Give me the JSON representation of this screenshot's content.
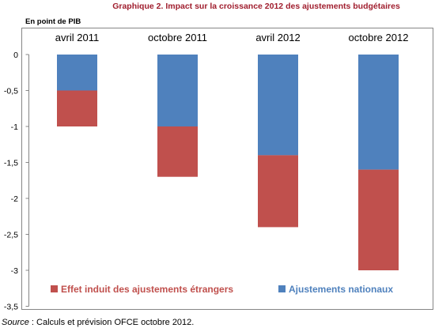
{
  "chart_data": {
    "type": "bar",
    "stacked": true,
    "title": "Graphique 2. Impact sur la croissance 2012 des ajustements budgétaires",
    "ylabel": "En point de PIB",
    "xlabel": "",
    "categories": [
      "avril 2011",
      "octobre 2011",
      "avril 2012",
      "octobre 2012"
    ],
    "category_axis_position": "top",
    "series": [
      {
        "name": "Ajustements nationaux",
        "values": [
          -0.5,
          -1.0,
          -1.4,
          -1.6
        ],
        "color": "#4F81BD"
      },
      {
        "name": "Effet induit des ajustements étrangers",
        "values": [
          -0.5,
          -0.7,
          -1.0,
          -1.4
        ],
        "color": "#C0504D"
      }
    ],
    "ylim": [
      -3.5,
      0
    ],
    "yticks": [
      0,
      -0.5,
      -1,
      -1.5,
      -2,
      -2.5,
      -3,
      -3.5
    ],
    "ytick_labels": [
      "0",
      "-0,5",
      "-1",
      "-1,5",
      "-2",
      "-2,5",
      "-3",
      "-3,5"
    ],
    "grid": false,
    "legend": "bottom",
    "colors": {
      "title": "#A01E2E",
      "frame": "#868686",
      "axis": "#868686"
    }
  },
  "source": {
    "label": "Source",
    "text": " : Calculs et prévision OFCE octobre 2012."
  }
}
